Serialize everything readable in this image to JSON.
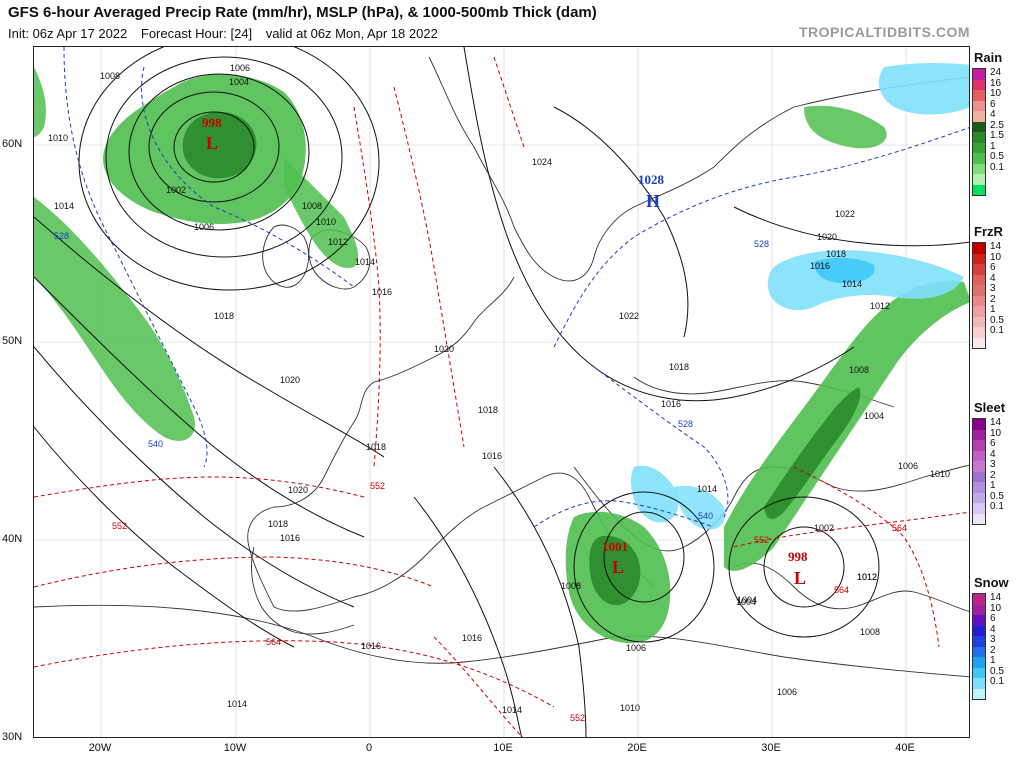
{
  "header": {
    "title": "GFS 6-hour Averaged Precip Rate (mm/hr), MSLP (hPa), & 1000-500mb Thick (dam)",
    "init": "Init: 06z Apr 17 2022",
    "forecast_hour": "Forecast Hour: [24]",
    "valid": "valid at 06z Mon, Apr 18 2022",
    "brand": "TROPICALTIDBITS.COM"
  },
  "axes": {
    "lat_labels": [
      "60N",
      "50N",
      "40N",
      "30N"
    ],
    "lon_labels": [
      "20W",
      "10W",
      "0",
      "10E",
      "20E",
      "30E",
      "40E"
    ]
  },
  "pressure_centers": [
    {
      "type": "L",
      "value": "998"
    },
    {
      "type": "H",
      "value": "1028"
    },
    {
      "type": "L",
      "value": "1001"
    },
    {
      "type": "L",
      "value": "998"
    }
  ],
  "isobar_labels": [
    "1008",
    "1006",
    "1004",
    "1010",
    "1002",
    "1014",
    "1006",
    "1008",
    "1010",
    "1012",
    "1014",
    "1016",
    "1018",
    "1020",
    "1024",
    "1022",
    "1020",
    "1018",
    "1016",
    "1022",
    "1020",
    "1018",
    "1014",
    "1012",
    "1008",
    "1004",
    "1006",
    "1010",
    "1002",
    "1012",
    "1008",
    "1006",
    "1004",
    "1016",
    "1014",
    "1018",
    "1016",
    "1020",
    "1018",
    "1016",
    "1018",
    "1016",
    "1014",
    "1010",
    "1008",
    "1006",
    "1004",
    "1016",
    "1012",
    "1014"
  ],
  "thickness_labels": [
    "528",
    "540",
    "552",
    "552",
    "564",
    "552",
    "528",
    "528",
    "540",
    "552",
    "564",
    "564"
  ],
  "legends": [
    {
      "title": "Rain",
      "ticks": [
        "24",
        "16",
        "10",
        "6",
        "4",
        "2.5",
        "1.5",
        "1",
        "0.5",
        "0.1"
      ],
      "colors": [
        "#c020a0",
        "#e03070",
        "#e06060",
        "#f09090",
        "#f0b0a0",
        "#1a5a1a",
        "#2a8a2a",
        "#3aa03a",
        "#4fbf4f",
        "#7de07d",
        "#b0f0b0",
        "#00e060"
      ]
    },
    {
      "title": "FrzR",
      "ticks": [
        "14",
        "10",
        "6",
        "4",
        "3",
        "2",
        "1",
        "0.5",
        "0.1"
      ],
      "colors": [
        "#c00000",
        "#d02020",
        "#d84040",
        "#e06060",
        "#e07070",
        "#e88888",
        "#f0a0a0",
        "#f4b8b8",
        "#f8d0d0",
        "#fce8e8"
      ]
    },
    {
      "title": "Sleet",
      "ticks": [
        "14",
        "10",
        "6",
        "4",
        "3",
        "2",
        "1",
        "0.5",
        "0.1"
      ],
      "colors": [
        "#8a008a",
        "#a020a0",
        "#b040b0",
        "#c060c0",
        "#c878c8",
        "#a070d0",
        "#b090e0",
        "#c0a8ea",
        "#d8c8f4",
        "#ece4fa"
      ]
    },
    {
      "title": "Snow",
      "ticks": [
        "14",
        "10",
        "6",
        "4",
        "3",
        "2",
        "1",
        "0.5",
        "0.1"
      ],
      "colors": [
        "#c02090",
        "#a020a0",
        "#6010c0",
        "#2020d0",
        "#2040e0",
        "#2070f0",
        "#20a0f0",
        "#40c8f8",
        "#80e0fc",
        "#c0f4fc"
      ]
    }
  ]
}
